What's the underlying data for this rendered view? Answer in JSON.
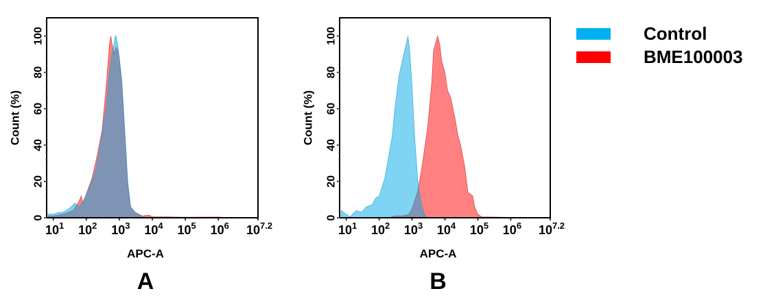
{
  "legend": [
    {
      "label": "Control",
      "color": "#00b0f0"
    },
    {
      "label": "BME100003",
      "color": "#ff0000"
    }
  ],
  "chart_data": [
    {
      "type": "area",
      "panel_label": "A",
      "xlabel": "APC-A",
      "ylabel": "Count  (%)",
      "xscale": "log",
      "xlim": [
        6.3,
        15850000
      ],
      "ylim": [
        0,
        110
      ],
      "yticks": [
        0,
        20,
        40,
        60,
        80,
        100
      ],
      "xticks": [
        {
          "base": "10",
          "exp": "1"
        },
        {
          "base": "10",
          "exp": "2"
        },
        {
          "base": "10",
          "exp": "3"
        },
        {
          "base": "10",
          "exp": "4"
        },
        {
          "base": "10",
          "exp": "5"
        },
        {
          "base": "10",
          "exp": "6"
        },
        {
          "base": "10",
          "exp": "7.2"
        }
      ],
      "series": [
        {
          "name": "BME100003",
          "color": "#ff8080",
          "points": [
            [
              7,
              1
            ],
            [
              10,
              1
            ],
            [
              20,
              2
            ],
            [
              40,
              4
            ],
            [
              60,
              9
            ],
            [
              70,
              12
            ],
            [
              80,
              8
            ],
            [
              100,
              13
            ],
            [
              150,
              22
            ],
            [
              200,
              32
            ],
            [
              300,
              48
            ],
            [
              400,
              72
            ],
            [
              500,
              95
            ],
            [
              550,
              100
            ],
            [
              600,
              96
            ],
            [
              700,
              90
            ],
            [
              800,
              94
            ],
            [
              900,
              92
            ],
            [
              1000,
              88
            ],
            [
              1200,
              72
            ],
            [
              1500,
              42
            ],
            [
              1800,
              18
            ],
            [
              2200,
              6
            ],
            [
              3000,
              3
            ],
            [
              5000,
              1
            ],
            [
              8000,
              1.5
            ],
            [
              10000,
              0.5
            ],
            [
              30000,
              0.5
            ],
            [
              100000,
              0.3
            ],
            [
              1000000,
              0.4
            ],
            [
              2000000,
              0
            ]
          ]
        },
        {
          "name": "Control",
          "color": "#00a8e8",
          "points": [
            [
              7,
              2
            ],
            [
              10,
              2
            ],
            [
              15,
              3
            ],
            [
              20,
              3
            ],
            [
              30,
              5
            ],
            [
              45,
              8
            ],
            [
              60,
              6
            ],
            [
              80,
              9
            ],
            [
              100,
              13
            ],
            [
              150,
              20
            ],
            [
              200,
              28
            ],
            [
              300,
              46
            ],
            [
              400,
              62
            ],
            [
              500,
              80
            ],
            [
              600,
              90
            ],
            [
              700,
              96
            ],
            [
              750,
              100
            ],
            [
              800,
              100
            ],
            [
              900,
              95
            ],
            [
              1000,
              88
            ],
            [
              1200,
              75
            ],
            [
              1500,
              45
            ],
            [
              1800,
              20
            ],
            [
              2200,
              6
            ],
            [
              3000,
              3
            ],
            [
              5000,
              0.5
            ],
            [
              10000,
              0
            ]
          ]
        }
      ]
    },
    {
      "type": "area",
      "panel_label": "B",
      "xlabel": "APC-A",
      "ylabel": "Count  (%)",
      "xscale": "log",
      "xlim": [
        6.3,
        15850000
      ],
      "ylim": [
        0,
        110
      ],
      "yticks": [
        0,
        20,
        40,
        60,
        80,
        100
      ],
      "xticks": [
        {
          "base": "10",
          "exp": "1"
        },
        {
          "base": "10",
          "exp": "2"
        },
        {
          "base": "10",
          "exp": "3"
        },
        {
          "base": "10",
          "exp": "4"
        },
        {
          "base": "10",
          "exp": "5"
        },
        {
          "base": "10",
          "exp": "6"
        },
        {
          "base": "10",
          "exp": "7.2"
        }
      ],
      "series": [
        {
          "name": "BME100003",
          "color": "#ff8080",
          "points": [
            [
              200,
              0
            ],
            [
              300,
              1
            ],
            [
              500,
              1
            ],
            [
              800,
              2
            ],
            [
              1000,
              5
            ],
            [
              1500,
              15
            ],
            [
              2000,
              28
            ],
            [
              2500,
              40
            ],
            [
              3000,
              50
            ],
            [
              4000,
              75
            ],
            [
              4500,
              92
            ],
            [
              5000,
              95
            ],
            [
              6000,
              100
            ],
            [
              7000,
              95
            ],
            [
              8000,
              86
            ],
            [
              10000,
              80
            ],
            [
              12000,
              70
            ],
            [
              15000,
              66
            ],
            [
              20000,
              55
            ],
            [
              25000,
              45
            ],
            [
              30000,
              40
            ],
            [
              40000,
              28
            ],
            [
              50000,
              14
            ],
            [
              70000,
              12
            ],
            [
              80000,
              6
            ],
            [
              100000,
              2
            ],
            [
              130000,
              0.5
            ],
            [
              300000,
              0.4
            ],
            [
              1000000,
              0.2
            ],
            [
              1200000,
              0
            ]
          ]
        },
        {
          "name": "Control",
          "color": "#00a8e8",
          "points": [
            [
              7,
              4
            ],
            [
              10,
              2
            ],
            [
              13,
              0.5
            ],
            [
              20,
              4
            ],
            [
              30,
              3
            ],
            [
              40,
              6
            ],
            [
              60,
              7
            ],
            [
              80,
              11
            ],
            [
              100,
              12
            ],
            [
              150,
              22
            ],
            [
              200,
              35
            ],
            [
              250,
              45
            ],
            [
              300,
              60
            ],
            [
              400,
              78
            ],
            [
              500,
              86
            ],
            [
              650,
              95
            ],
            [
              750,
              100
            ],
            [
              850,
              92
            ],
            [
              1000,
              72
            ],
            [
              1200,
              45
            ],
            [
              1500,
              20
            ],
            [
              2000,
              6
            ],
            [
              2500,
              1
            ],
            [
              3000,
              0
            ]
          ]
        }
      ]
    }
  ]
}
